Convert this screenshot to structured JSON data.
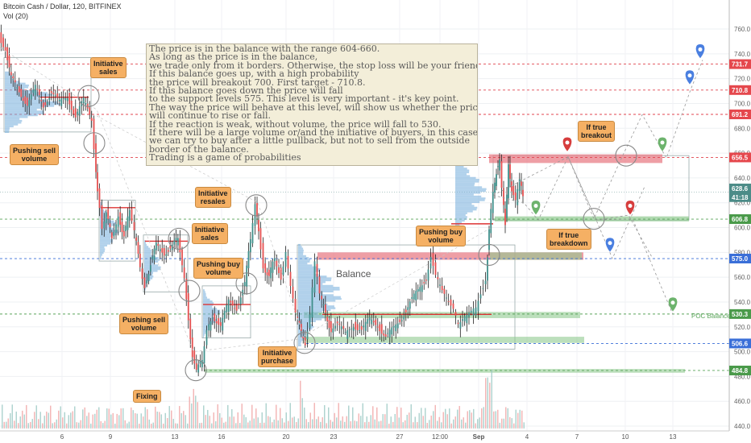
{
  "header": {
    "symbol": "Bitcoin Cash / Dollar, 120, BITFINEX",
    "volume": "Vol (20)"
  },
  "note_lines": [
    "The price is in the balance with the range 604-660.",
    "As long as the price is in the balance,",
    "we trade only from it borders. Otherwise, the stop loss will be your friend.",
    "If this balance goes up, with a high probability",
    "the price will breakout 700. First target - 710.8.",
    "If this balance goes down the price will fall",
    "to the support levels 575. This level is very important - it's key point.",
    "The way the price will behave at this level, will show us whether the price",
    "will continue to rise or fall.",
    "If the reaction is weak, without volume, the price will fall to 530.",
    "If there will be a large volume or/and the initiative of buyers, in this case",
    "we can try to buy after a little pullback, but not to sell from the outside",
    "border of the balance.",
    "Trading is a game of probabilities"
  ],
  "callouts": {
    "initiative_sales_1": "Initiative\nsales",
    "pushing_sell_volume_1": "Pushing sell\nvolume",
    "initiative_resales": "Initiative\nresales",
    "initiative_sales_2": "Initiative\nsales",
    "pushing_buy_volume_1": "Pushing buy\nvolume",
    "pushing_sell_volume_2": "Pushing sell\nvolume",
    "initiative_purchase": "Initiative\npurchase",
    "fixing": "Fixing",
    "pushing_buy_volume_2": "Pushing buy\nvolume",
    "if_true_breakout": "If true\nbreakout",
    "if_true_breakdown": "If true\nbreakdown"
  },
  "labels": {
    "balance": "Balance",
    "poc_balance": "POC Balance"
  },
  "colors": {
    "up": "#3f8f8a",
    "down": "#e55050",
    "level_red": "#e0454f",
    "level_green": "#5aa45a",
    "level_blue": "#3a6fd8",
    "price_label": "#e5484d",
    "callout": "#f5b064"
  },
  "chart_data": {
    "type": "candlestick",
    "y_axis": {
      "ticks": [
        440,
        460,
        480,
        500,
        520,
        540,
        560,
        580,
        600,
        620,
        640,
        660,
        680,
        700,
        720,
        740,
        760
      ],
      "range": [
        436,
        770
      ]
    },
    "x_axis": {
      "ticks": [
        "6",
        "9",
        "13",
        "16",
        "20",
        "23",
        "27",
        "12:00",
        "Sep",
        "4",
        "7",
        "10",
        "13"
      ]
    },
    "price_labels": [
      {
        "value": "731.7",
        "color": "#e5484d"
      },
      {
        "value": "710.8",
        "color": "#e5484d"
      },
      {
        "value": "691.2",
        "color": "#e5484d"
      },
      {
        "value": "656.5",
        "color": "#e5484d"
      },
      {
        "value": "628.6",
        "color": "#4c8c88"
      },
      {
        "value": "41:18",
        "color": "#4c8c88"
      },
      {
        "value": "606.8",
        "color": "#4a9a4a"
      },
      {
        "value": "575.0",
        "color": "#3a6fd8"
      },
      {
        "value": "530.3",
        "color": "#4a9a4a"
      },
      {
        "value": "506.6",
        "color": "#3a6fd8"
      },
      {
        "value": "484.8",
        "color": "#4a9a4a"
      }
    ],
    "levels": [
      {
        "price": 731.7,
        "color": "red"
      },
      {
        "price": 710.8,
        "color": "red"
      },
      {
        "price": 691.2,
        "color": "red"
      },
      {
        "price": 656.5,
        "color": "red"
      },
      {
        "price": 606.8,
        "color": "green"
      },
      {
        "price": 575.0,
        "color": "blue"
      },
      {
        "price": 530.3,
        "color": "green"
      }
    ],
    "last_price": 628.6
  }
}
